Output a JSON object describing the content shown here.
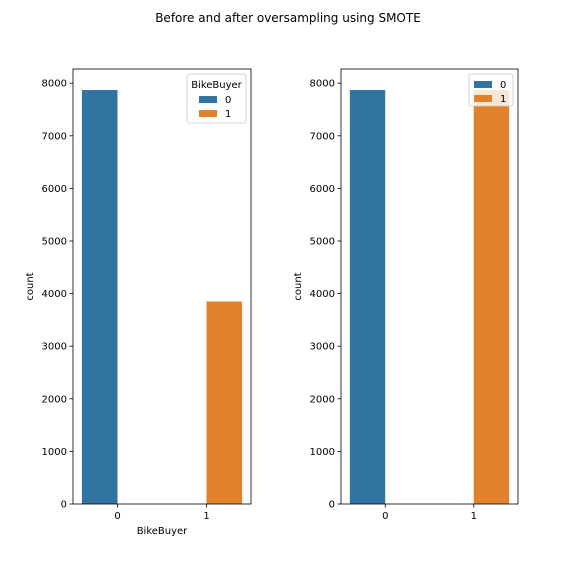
{
  "figure": {
    "suptitle": "Before and after oversampling using SMOTE"
  },
  "colors": {
    "class_0": "#3274a1",
    "class_1": "#e1812c"
  },
  "chart_data": [
    {
      "type": "bar",
      "categories": [
        "0",
        "1"
      ],
      "series": [
        {
          "name": "0",
          "values": [
            7870,
            0
          ]
        },
        {
          "name": "1",
          "values": [
            0,
            3850
          ]
        }
      ],
      "xlabel": "BikeBuyer",
      "ylabel": "count",
      "ylim": [
        0,
        8270
      ],
      "yticks": [
        0,
        1000,
        2000,
        3000,
        4000,
        5000,
        6000,
        7000,
        8000
      ],
      "legend": {
        "title": "BikeBuyer",
        "placement": "top-right",
        "entries": [
          "0",
          "1"
        ]
      },
      "grid": false
    },
    {
      "type": "bar",
      "categories": [
        "0",
        "1"
      ],
      "series": [
        {
          "name": "0",
          "values": [
            7870,
            0
          ]
        },
        {
          "name": "1",
          "values": [
            0,
            7870
          ]
        }
      ],
      "xlabel": "",
      "ylabel": "count",
      "ylim": [
        0,
        8270
      ],
      "yticks": [
        0,
        1000,
        2000,
        3000,
        4000,
        5000,
        6000,
        7000,
        8000
      ],
      "legend": {
        "title": "",
        "placement": "top-right",
        "entries": [
          "0",
          "1"
        ]
      },
      "grid": false
    }
  ]
}
